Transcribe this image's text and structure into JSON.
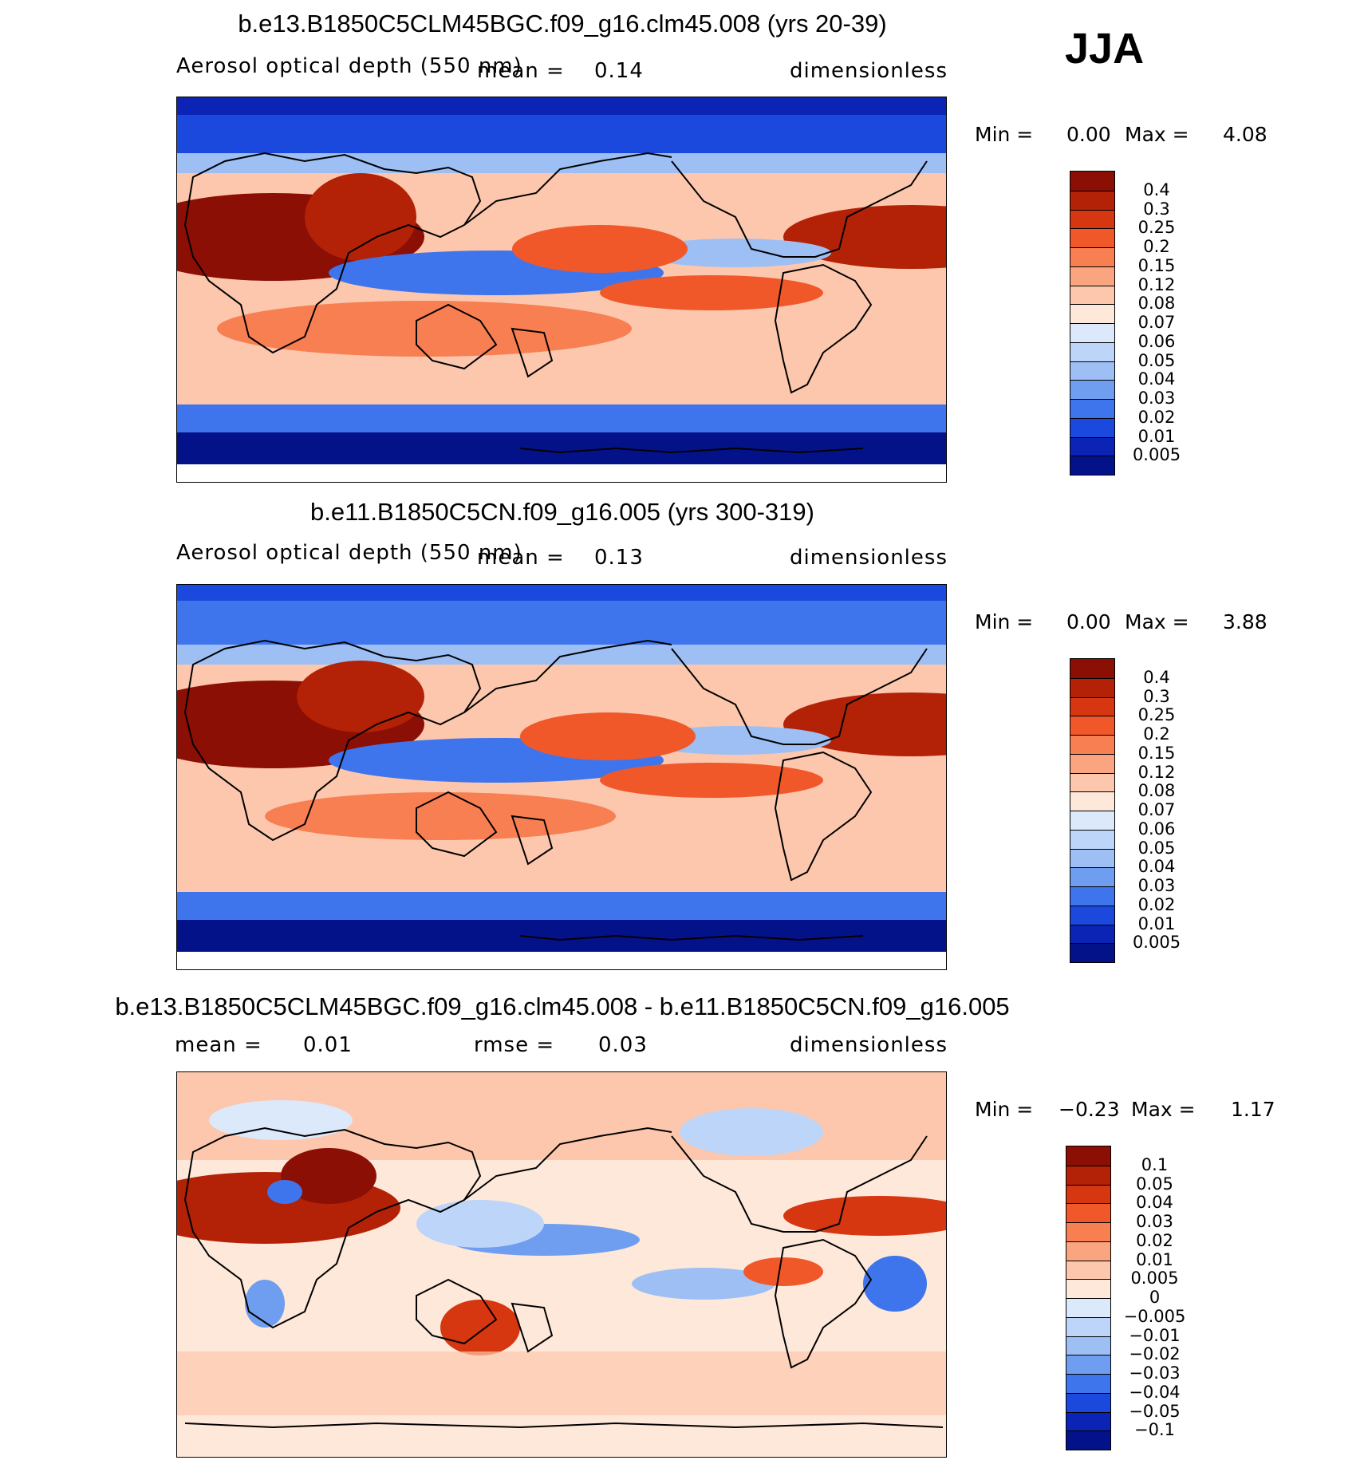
{
  "season": "JJA",
  "panels": [
    {
      "title": "b.e13.B1850C5CLM45BGC.f09_g16.clm45.008 (yrs 20-39)",
      "left_label": "Aerosol optical depth (550 nm)",
      "mid_label": "mean =",
      "mid_value": "0.14",
      "units": "dimensionless",
      "min_label": "Min =",
      "min_value": "0.00",
      "max_label": "Max =",
      "max_value": "4.08",
      "levels": [
        "0.4",
        "0.3",
        "0.25",
        "0.2",
        "0.15",
        "0.12",
        "0.08",
        "0.07",
        "0.06",
        "0.05",
        "0.04",
        "0.03",
        "0.02",
        "0.01",
        "0.005"
      ],
      "colors": [
        "#8b0f05",
        "#b32106",
        "#d63610",
        "#f0582a",
        "#f77f52",
        "#fba480",
        "#fcc7ad",
        "#fde8da",
        "#dbe9fb",
        "#bcd5f8",
        "#9dbff4",
        "#6f9df0",
        "#3f75ec",
        "#1b48dd",
        "#0b24b6",
        "#04128a"
      ]
    },
    {
      "title": "b.e11.B1850C5CN.f09_g16.005 (yrs 300-319)",
      "left_label": "Aerosol optical depth (550 nm)",
      "mid_label": "mean =",
      "mid_value": "0.13",
      "units": "dimensionless",
      "min_label": "Min =",
      "min_value": "0.00",
      "max_label": "Max =",
      "max_value": "3.88",
      "levels": [
        "0.4",
        "0.3",
        "0.25",
        "0.2",
        "0.15",
        "0.12",
        "0.08",
        "0.07",
        "0.06",
        "0.05",
        "0.04",
        "0.03",
        "0.02",
        "0.01",
        "0.005"
      ],
      "colors": [
        "#8b0f05",
        "#b32106",
        "#d63610",
        "#f0582a",
        "#f77f52",
        "#fba480",
        "#fcc7ad",
        "#fde8da",
        "#dbe9fb",
        "#bcd5f8",
        "#9dbff4",
        "#6f9df0",
        "#3f75ec",
        "#1b48dd",
        "#0b24b6",
        "#04128a"
      ]
    },
    {
      "title": "b.e13.B1850C5CLM45BGC.f09_g16.clm45.008 - b.e11.B1850C5CN.f09_g16.005",
      "left_label": "mean =",
      "left_value": "0.01",
      "mid_label": "rmse =",
      "mid_value": "0.03",
      "units": "dimensionless",
      "min_label": "Min =",
      "min_value": "−0.23",
      "max_label": "Max =",
      "max_value": "1.17",
      "levels": [
        "0.1",
        "0.05",
        "0.04",
        "0.03",
        "0.02",
        "0.01",
        "0.005",
        "0",
        "−0.005",
        "−0.01",
        "−0.02",
        "−0.03",
        "−0.04",
        "−0.05",
        "−0.1"
      ],
      "colors": [
        "#8b0f05",
        "#b32106",
        "#d63610",
        "#f0582a",
        "#f77f52",
        "#fba480",
        "#fcc7ad",
        "#fde8da",
        "#dbe9fb",
        "#bcd5f8",
        "#9dbff4",
        "#6f9df0",
        "#3f75ec",
        "#1b48dd",
        "#0b24b6",
        "#04128a"
      ]
    }
  ]
}
